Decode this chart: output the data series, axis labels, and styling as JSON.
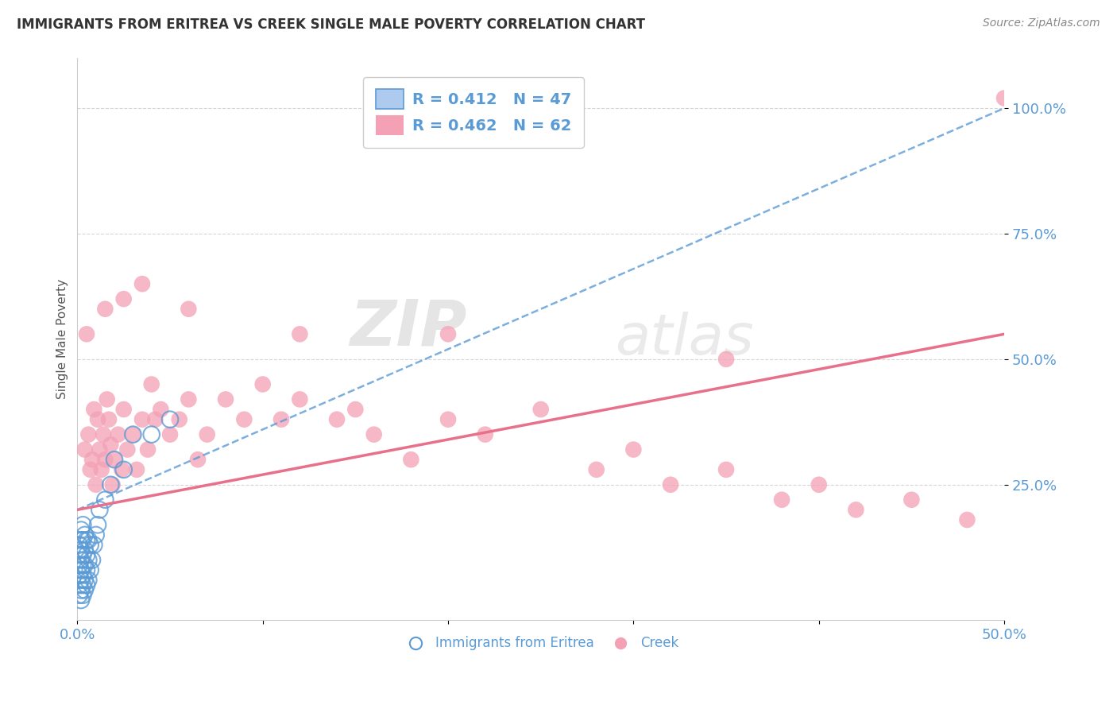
{
  "title": "IMMIGRANTS FROM ERITREA VS CREEK SINGLE MALE POVERTY CORRELATION CHART",
  "source": "Source: ZipAtlas.com",
  "ylabel": "Single Male Poverty",
  "xlim": [
    0.0,
    0.5
  ],
  "ylim": [
    -0.02,
    1.1
  ],
  "ytick_positions": [
    0.25,
    0.5,
    0.75,
    1.0
  ],
  "ytick_labels": [
    "25.0%",
    "50.0%",
    "75.0%",
    "100.0%"
  ],
  "legend_blue_label": "Immigrants from Eritrea",
  "legend_pink_label": "Creek",
  "r_blue": "0.412",
  "n_blue": "47",
  "r_pink": "0.462",
  "n_pink": "62",
  "blue_fill_color": "#AECBEF",
  "blue_edge_color": "#5B9BD5",
  "pink_fill_color": "#F4A0B5",
  "pink_edge_color": "#E8708A",
  "blue_trend_color": "#5B9BD5",
  "pink_trend_color": "#E8708A",
  "title_color": "#333333",
  "axis_label_color": "#555555",
  "tick_label_color": "#5B9BD5",
  "grid_color": "#CCCCCC",
  "background_color": "#FFFFFF",
  "watermark_zip": "ZIP",
  "watermark_atlas": "atlas",
  "blue_scatter_x": [
    0.001,
    0.001,
    0.001,
    0.001,
    0.001,
    0.001,
    0.002,
    0.002,
    0.002,
    0.002,
    0.002,
    0.002,
    0.002,
    0.002,
    0.003,
    0.003,
    0.003,
    0.003,
    0.003,
    0.003,
    0.003,
    0.004,
    0.004,
    0.004,
    0.004,
    0.004,
    0.005,
    0.005,
    0.005,
    0.005,
    0.006,
    0.006,
    0.006,
    0.007,
    0.007,
    0.008,
    0.009,
    0.01,
    0.011,
    0.012,
    0.015,
    0.018,
    0.02,
    0.025,
    0.03,
    0.04,
    0.05
  ],
  "blue_scatter_y": [
    0.03,
    0.05,
    0.07,
    0.09,
    0.11,
    0.13,
    0.02,
    0.04,
    0.06,
    0.08,
    0.1,
    0.12,
    0.14,
    0.16,
    0.03,
    0.05,
    0.07,
    0.09,
    0.11,
    0.14,
    0.17,
    0.04,
    0.06,
    0.09,
    0.12,
    0.15,
    0.05,
    0.08,
    0.11,
    0.14,
    0.06,
    0.1,
    0.14,
    0.08,
    0.13,
    0.1,
    0.13,
    0.15,
    0.17,
    0.2,
    0.22,
    0.25,
    0.3,
    0.28,
    0.35,
    0.35,
    0.38
  ],
  "pink_scatter_x": [
    0.004,
    0.006,
    0.007,
    0.008,
    0.009,
    0.01,
    0.011,
    0.012,
    0.013,
    0.014,
    0.015,
    0.016,
    0.017,
    0.018,
    0.019,
    0.02,
    0.022,
    0.024,
    0.025,
    0.027,
    0.03,
    0.032,
    0.035,
    0.038,
    0.04,
    0.042,
    0.045,
    0.05,
    0.055,
    0.06,
    0.065,
    0.07,
    0.08,
    0.09,
    0.1,
    0.11,
    0.12,
    0.14,
    0.15,
    0.16,
    0.18,
    0.2,
    0.22,
    0.25,
    0.28,
    0.3,
    0.32,
    0.35,
    0.38,
    0.4,
    0.42,
    0.45,
    0.48,
    0.5,
    0.005,
    0.015,
    0.025,
    0.035,
    0.06,
    0.12,
    0.2,
    0.35
  ],
  "pink_scatter_y": [
    0.32,
    0.35,
    0.28,
    0.3,
    0.4,
    0.25,
    0.38,
    0.32,
    0.28,
    0.35,
    0.3,
    0.42,
    0.38,
    0.33,
    0.25,
    0.3,
    0.35,
    0.28,
    0.4,
    0.32,
    0.35,
    0.28,
    0.38,
    0.32,
    0.45,
    0.38,
    0.4,
    0.35,
    0.38,
    0.42,
    0.3,
    0.35,
    0.42,
    0.38,
    0.45,
    0.38,
    0.42,
    0.38,
    0.4,
    0.35,
    0.3,
    0.38,
    0.35,
    0.4,
    0.28,
    0.32,
    0.25,
    0.28,
    0.22,
    0.25,
    0.2,
    0.22,
    0.18,
    1.02,
    0.55,
    0.6,
    0.62,
    0.65,
    0.6,
    0.55,
    0.55,
    0.5
  ],
  "blue_trend_x0": 0.0,
  "blue_trend_y0": 0.2,
  "blue_trend_x1": 0.5,
  "blue_trend_y1": 1.0,
  "pink_trend_x0": 0.0,
  "pink_trend_y0": 0.2,
  "pink_trend_x1": 0.5,
  "pink_trend_y1": 0.55
}
